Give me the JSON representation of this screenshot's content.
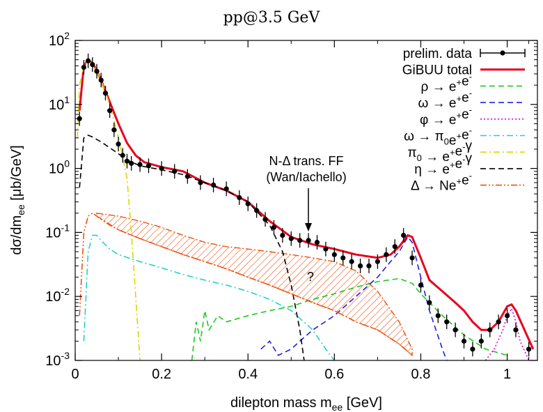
{
  "chart_data": {
    "type": "line",
    "title": "pp@3.5 GeV",
    "xlabel": "dilepton mass m_ee [GeV]",
    "ylabel": "dσ/dm_ee [μb/GeV]",
    "xlim": [
      0,
      1.07
    ],
    "ylim": [
      0.001,
      100
    ],
    "yscale": "log",
    "x_ticks": [
      "0",
      "0.2",
      "0.4",
      "0.6",
      "0.8",
      "1"
    ],
    "y_ticks": [
      "10-3",
      "10-2",
      "10-1",
      "100",
      "101",
      "102"
    ],
    "legend_position": "top-right",
    "annotations": [
      {
        "text": "N-Δ trans. FF",
        "x": 0.55,
        "y": 0.45
      },
      {
        "text": "(Wan/Iachello)",
        "x": 0.55,
        "y": 0.3
      },
      {
        "text": "?",
        "x": 0.55,
        "y": 0.02
      }
    ],
    "series": [
      {
        "name": "prelim. data",
        "color": "#000000",
        "style": "points",
        "x": [
          0.01,
          0.02,
          0.03,
          0.04,
          0.05,
          0.06,
          0.07,
          0.08,
          0.09,
          0.1,
          0.11,
          0.12,
          0.13,
          0.15,
          0.17,
          0.2,
          0.23,
          0.26,
          0.29,
          0.32,
          0.35,
          0.38,
          0.4,
          0.42,
          0.44,
          0.46,
          0.48,
          0.5,
          0.52,
          0.54,
          0.56,
          0.58,
          0.6,
          0.62,
          0.64,
          0.66,
          0.68,
          0.7,
          0.72,
          0.74,
          0.76,
          0.78,
          0.8,
          0.82,
          0.84,
          0.86,
          0.88,
          0.9,
          0.92,
          0.94,
          0.96,
          0.98,
          1.0,
          1.02,
          1.05
        ],
        "y": [
          6,
          38,
          48,
          42,
          33,
          24,
          15,
          8,
          4,
          2.4,
          1.6,
          1.3,
          1.2,
          1.15,
          1.1,
          1.0,
          0.9,
          0.75,
          0.6,
          0.55,
          0.48,
          0.35,
          0.28,
          0.22,
          0.16,
          0.12,
          0.09,
          0.08,
          0.075,
          0.075,
          0.07,
          0.055,
          0.045,
          0.04,
          0.035,
          0.03,
          0.03,
          0.035,
          0.045,
          0.06,
          0.09,
          0.04,
          0.015,
          0.008,
          0.005,
          0.004,
          0.003,
          0.002,
          0.0015,
          0.002,
          0.003,
          0.004,
          0.005,
          0.003,
          0.0015
        ]
      },
      {
        "name": "GiBUU total",
        "color": "#e8001c",
        "style": "solid",
        "x": [
          0.01,
          0.02,
          0.03,
          0.04,
          0.05,
          0.06,
          0.08,
          0.1,
          0.12,
          0.14,
          0.16,
          0.2,
          0.25,
          0.3,
          0.35,
          0.4,
          0.45,
          0.5,
          0.55,
          0.6,
          0.65,
          0.7,
          0.73,
          0.75,
          0.77,
          0.78,
          0.8,
          0.82,
          0.85,
          0.88,
          0.9,
          0.92,
          0.94,
          0.96,
          0.98,
          1.0,
          1.01,
          1.02,
          1.04,
          1.06
        ],
        "y": [
          8,
          40,
          50,
          44,
          34,
          24,
          11,
          5,
          2.5,
          1.6,
          1.25,
          1.05,
          0.9,
          0.6,
          0.45,
          0.3,
          0.15,
          0.085,
          0.065,
          0.055,
          0.045,
          0.04,
          0.045,
          0.06,
          0.09,
          0.085,
          0.04,
          0.018,
          0.012,
          0.008,
          0.006,
          0.004,
          0.003,
          0.003,
          0.004,
          0.007,
          0.0075,
          0.006,
          0.003,
          0.0015
        ]
      },
      {
        "name": "ρ → e+e-",
        "color": "#1ec81e",
        "style": "dashed",
        "x": [
          0.27,
          0.28,
          0.29,
          0.3,
          0.31,
          0.33,
          0.35,
          0.4,
          0.45,
          0.5,
          0.55,
          0.6,
          0.65,
          0.7,
          0.75,
          0.78,
          0.8,
          0.85,
          0.9,
          0.95,
          1.0
        ],
        "y": [
          0.001,
          0.004,
          0.002,
          0.006,
          0.003,
          0.005,
          0.004,
          0.005,
          0.006,
          0.007,
          0.009,
          0.011,
          0.014,
          0.017,
          0.019,
          0.016,
          0.011,
          0.005,
          0.0025,
          0.0015,
          0.0012
        ]
      },
      {
        "name": "ω → e+e-",
        "color": "#2020e0",
        "style": "dashed",
        "x": [
          0.43,
          0.45,
          0.47,
          0.5,
          0.52,
          0.55,
          0.6,
          0.65,
          0.7,
          0.73,
          0.75,
          0.77,
          0.78,
          0.8,
          0.82,
          0.85,
          0.86
        ],
        "y": [
          0.0015,
          0.002,
          0.0012,
          0.0015,
          0.002,
          0.003,
          0.005,
          0.01,
          0.02,
          0.035,
          0.05,
          0.085,
          0.07,
          0.02,
          0.006,
          0.0015,
          0.001
        ]
      },
      {
        "name": "φ → e+e-",
        "color": "#e000e0",
        "style": "dotted",
        "x": [
          0.95,
          0.97,
          0.99,
          1.0,
          1.01,
          1.02,
          1.03,
          1.05
        ],
        "y": [
          0.001,
          0.0015,
          0.003,
          0.005,
          0.0065,
          0.004,
          0.002,
          0.001
        ]
      },
      {
        "name": "ω → π0e+e-",
        "color": "#20d0d0",
        "style": "dashdot",
        "x": [
          0.02,
          0.03,
          0.04,
          0.05,
          0.06,
          0.08,
          0.1,
          0.15,
          0.2,
          0.25,
          0.3,
          0.35,
          0.4,
          0.45,
          0.5,
          0.55,
          0.58,
          0.6
        ],
        "y": [
          0.002,
          0.05,
          0.09,
          0.09,
          0.075,
          0.055,
          0.045,
          0.035,
          0.028,
          0.022,
          0.018,
          0.015,
          0.012,
          0.009,
          0.006,
          0.003,
          0.0015,
          0.001
        ]
      },
      {
        "name": "π0 → e+e-γ",
        "color": "#d8d800",
        "style": "dashdot",
        "x": [
          0.005,
          0.01,
          0.02,
          0.03,
          0.04,
          0.05,
          0.06,
          0.08,
          0.1,
          0.11,
          0.12,
          0.13,
          0.14,
          0.15
        ],
        "y": [
          3,
          20,
          40,
          48,
          42,
          34,
          24,
          10,
          3,
          1.5,
          0.7,
          0.1,
          0.01,
          0.001
        ]
      },
      {
        "name": "η → e+e-γ",
        "color": "#000000",
        "style": "dashed",
        "x": [
          0.01,
          0.02,
          0.03,
          0.04,
          0.06,
          0.08,
          0.1,
          0.12,
          0.15,
          0.2,
          0.25,
          0.3,
          0.35,
          0.4,
          0.45,
          0.48,
          0.5,
          0.52,
          0.53
        ],
        "y": [
          0.5,
          3,
          3.3,
          3.1,
          2.6,
          2.1,
          1.7,
          1.35,
          1.1,
          0.95,
          0.8,
          0.6,
          0.45,
          0.3,
          0.13,
          0.05,
          0.015,
          0.003,
          0.001
        ]
      },
      {
        "name": "Δ → Ne+e-",
        "color": "#f05010",
        "style": "dashdotdot",
        "x": [
          0.01,
          0.02,
          0.03,
          0.04,
          0.05,
          0.06,
          0.08,
          0.1,
          0.15,
          0.2,
          0.25,
          0.3,
          0.35,
          0.4,
          0.45,
          0.5,
          0.55,
          0.6,
          0.65,
          0.7,
          0.75,
          0.78
        ],
        "y": [
          0.005,
          0.1,
          0.18,
          0.2,
          0.18,
          0.16,
          0.13,
          0.11,
          0.08,
          0.06,
          0.045,
          0.035,
          0.027,
          0.02,
          0.015,
          0.011,
          0.008,
          0.006,
          0.004,
          0.003,
          0.0018,
          0.0012
        ]
      },
      {
        "name": "",
        "color": "#f05010",
        "style": "band",
        "x": [
          0.05,
          0.1,
          0.15,
          0.2,
          0.25,
          0.3,
          0.35,
          0.4,
          0.45,
          0.5,
          0.55,
          0.6,
          0.65,
          0.7,
          0.75,
          0.78
        ],
        "upper": [
          0.2,
          0.18,
          0.15,
          0.12,
          0.09,
          0.07,
          0.06,
          0.055,
          0.05,
          0.045,
          0.04,
          0.035,
          0.025,
          0.012,
          0.004,
          0.0015
        ],
        "lower": [
          0.18,
          0.11,
          0.08,
          0.06,
          0.045,
          0.035,
          0.027,
          0.02,
          0.015,
          0.011,
          0.008,
          0.006,
          0.004,
          0.003,
          0.0018,
          0.0012
        ]
      }
    ]
  }
}
